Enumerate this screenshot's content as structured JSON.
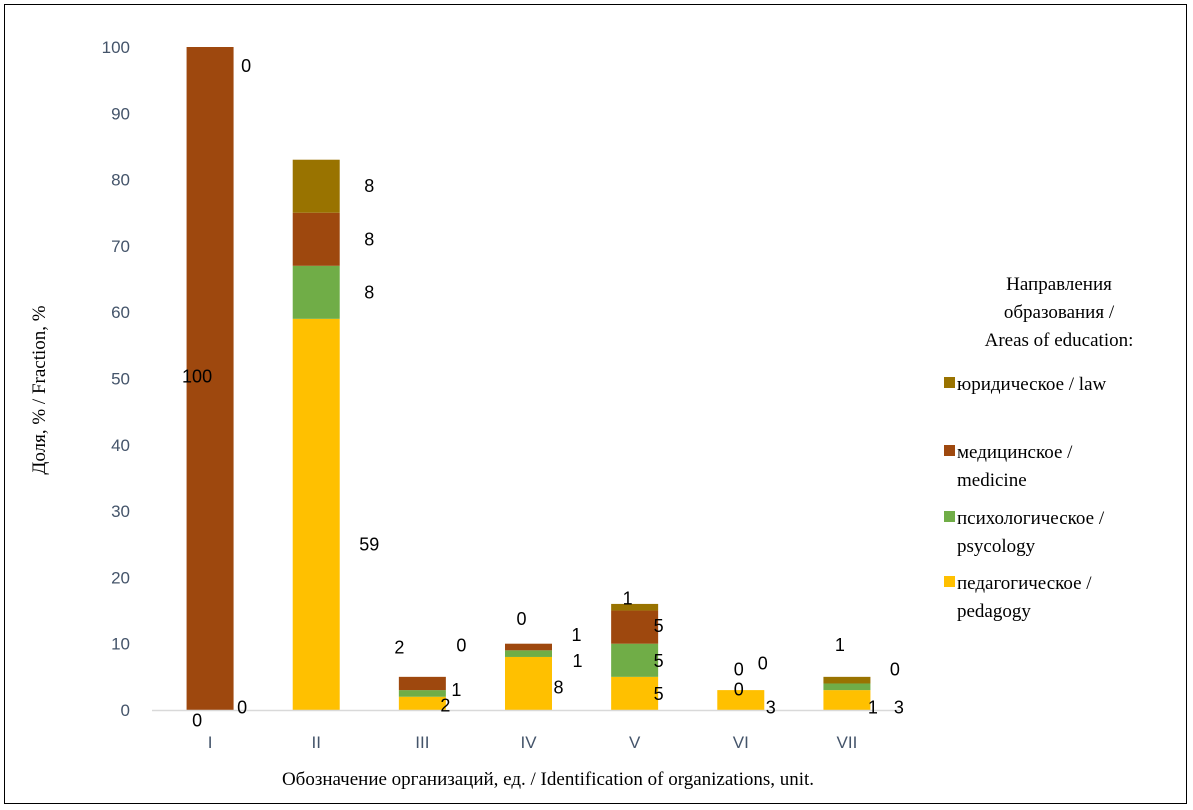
{
  "chart_data": {
    "type": "bar",
    "stacked": true,
    "categories": [
      "I",
      "II",
      "III",
      "IV",
      "V",
      "VI",
      "VII"
    ],
    "series": [
      {
        "name": "педагогическое / pedagogy",
        "color": "#ffc000",
        "values": [
          0,
          59,
          2,
          8,
          5,
          3,
          3
        ]
      },
      {
        "name": "психологическое / psycology",
        "color": "#70ad47",
        "values": [
          0,
          8,
          1,
          1,
          5,
          0,
          1
        ]
      },
      {
        "name": "медицинское / medicine",
        "color": "#9e480e",
        "values": [
          100,
          8,
          2,
          1,
          5,
          0,
          0
        ]
      },
      {
        "name": "юридическое / law",
        "color": "#997300",
        "values": [
          0,
          8,
          0,
          0,
          1,
          0,
          1
        ]
      }
    ],
    "xlabel": "Обозначение организаций, ед. / Identification of organizations, unit.",
    "ylabel": "Доля, % / Fraction, %",
    "ylim": [
      0,
      100
    ],
    "yticks": [
      "0",
      "10",
      "20",
      "30",
      "40",
      "50",
      "60",
      "70",
      "80",
      "90",
      "100"
    ],
    "legend": {
      "title_lines": [
        "Направления",
        "образования /",
        "Areas of education:"
      ],
      "placement": "right",
      "items": [
        {
          "lines": [
            "юридическое / law"
          ],
          "color": "#997300"
        },
        {
          "lines": [
            "медицинское /",
            "medicine"
          ],
          "color": "#9e480e"
        },
        {
          "lines": [
            "психологическое /",
            "psycology"
          ],
          "color": "#70ad47"
        },
        {
          "lines": [
            "педагогическое /",
            "pedagogy"
          ],
          "color": "#ffc000"
        }
      ]
    },
    "data_labels": [
      {
        "cat": "I",
        "text": "0",
        "pos": "below-base"
      },
      {
        "cat": "I",
        "text": "0",
        "pos": "right-base"
      },
      {
        "cat": "I",
        "text": "100",
        "pos": "center-mid"
      },
      {
        "cat": "I",
        "text": "0",
        "pos": "right-top"
      },
      {
        "cat": "II",
        "text": "59",
        "pos": "right-of-series-0"
      },
      {
        "cat": "II",
        "text": "8",
        "pos": "right-of-series-1"
      },
      {
        "cat": "II",
        "text": "8",
        "pos": "right-of-series-2"
      },
      {
        "cat": "II",
        "text": "8",
        "pos": "right-of-series-3"
      },
      {
        "cat": "III",
        "text": "2",
        "pos": "custom-1"
      },
      {
        "cat": "III",
        "text": "1",
        "pos": "custom-2"
      },
      {
        "cat": "III",
        "text": "2",
        "pos": "custom-3"
      },
      {
        "cat": "III",
        "text": "0",
        "pos": "custom-4"
      },
      {
        "cat": "IV",
        "text": "8",
        "pos": "custom-1"
      },
      {
        "cat": "IV",
        "text": "1",
        "pos": "custom-2"
      },
      {
        "cat": "IV",
        "text": "1",
        "pos": "custom-3"
      },
      {
        "cat": "IV",
        "text": "0",
        "pos": "custom-4"
      },
      {
        "cat": "V",
        "text": "5",
        "pos": "custom-1"
      },
      {
        "cat": "V",
        "text": "5",
        "pos": "custom-2"
      },
      {
        "cat": "V",
        "text": "5",
        "pos": "custom-3"
      },
      {
        "cat": "V",
        "text": "1",
        "pos": "custom-4"
      },
      {
        "cat": "VI",
        "text": "3",
        "pos": "custom-1"
      },
      {
        "cat": "VI",
        "text": "0",
        "pos": "custom-2"
      },
      {
        "cat": "VI",
        "text": "0",
        "pos": "custom-3"
      },
      {
        "cat": "VI",
        "text": "0",
        "pos": "custom-4"
      },
      {
        "cat": "VII",
        "text": "3",
        "pos": "custom-1"
      },
      {
        "cat": "VII",
        "text": "1",
        "pos": "custom-2"
      },
      {
        "cat": "VII",
        "text": "0",
        "pos": "custom-3"
      },
      {
        "cat": "VII",
        "text": "1",
        "pos": "custom-4"
      }
    ],
    "grid": false
  }
}
